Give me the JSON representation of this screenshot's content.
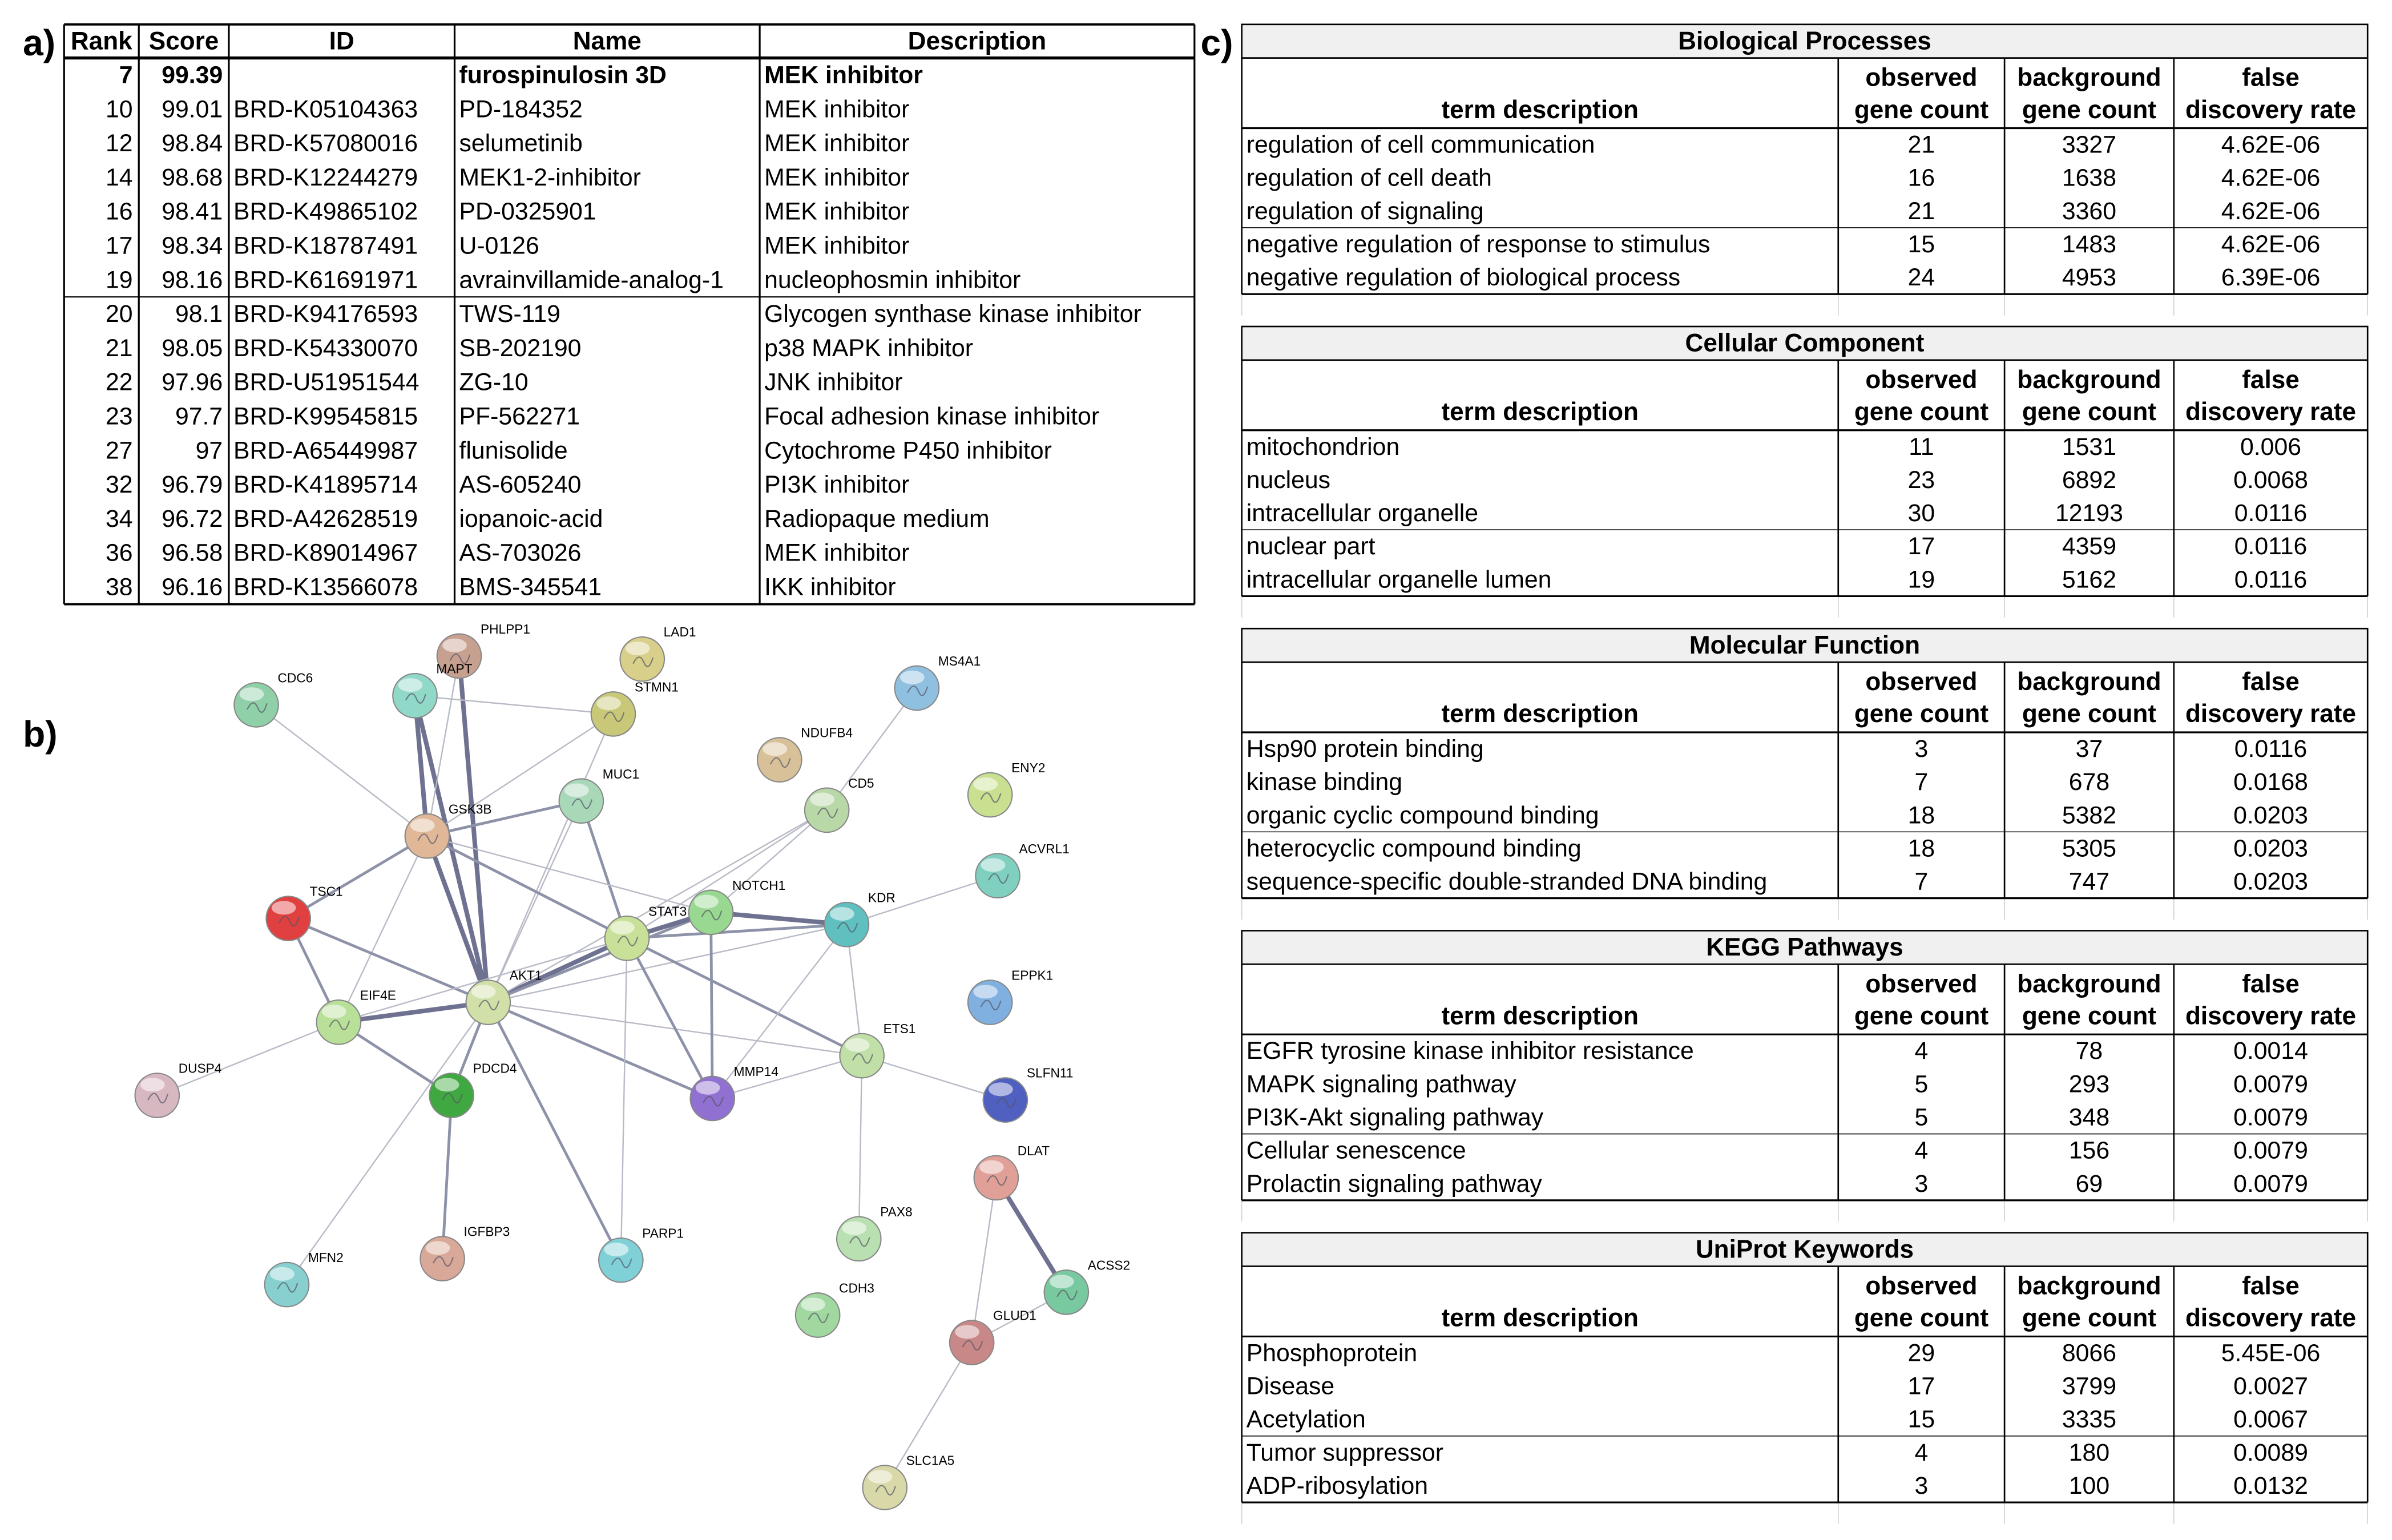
{
  "panel_labels": [
    "a)",
    "b)",
    "c)"
  ],
  "table_a": {
    "headers": [
      "Rank",
      "Score",
      "ID",
      "Name",
      "Description"
    ],
    "rows": [
      [
        7,
        99.39,
        null,
        "furospinulosin 3D",
        "MEK inhibitor"
      ],
      [
        10,
        99.01,
        "BRD-K05104363",
        "PD-184352",
        "MEK inhibitor"
      ],
      [
        12,
        98.84,
        "BRD-K57080016",
        "selumetinib",
        "MEK inhibitor"
      ],
      [
        14,
        98.68,
        "BRD-K12244279",
        "MEK1-2-inhibitor",
        "MEK inhibitor"
      ],
      [
        16,
        98.41,
        "BRD-K49865102",
        "PD-0325901",
        "MEK inhibitor"
      ],
      [
        17,
        98.34,
        "BRD-K18787491",
        "U-0126",
        "MEK inhibitor"
      ],
      [
        19,
        98.16,
        "BRD-K61691971",
        "avrainvillamide-analog-1",
        "nucleophosmin inhibitor"
      ],
      [
        20,
        98.1,
        "BRD-K94176593",
        "TWS-119",
        "Glycogen synthase kinase inhibitor"
      ],
      [
        21,
        98.05,
        "BRD-K54330070",
        "SB-202190",
        "p38 MAPK inhibitor"
      ],
      [
        22,
        97.96,
        "BRD-U51951544",
        "ZG-10",
        "JNK inhibitor"
      ],
      [
        23,
        97.7,
        "BRD-K99545815",
        "PF-562271",
        "Focal adhesion kinase inhibitor"
      ],
      [
        27,
        97,
        "BRD-A65449987",
        "flunisolide",
        "Cytochrome P450 inhibitor"
      ],
      [
        32,
        96.79,
        "BRD-K41895714",
        "AS-605240",
        "PI3K inhibitor"
      ],
      [
        34,
        96.72,
        "BRD-A42628519",
        "iopanoic-acid",
        "Radiopaque medium"
      ],
      [
        36,
        96.58,
        "BRD-K89014967",
        "AS-703026",
        "MEK inhibitor"
      ],
      [
        38,
        96.16,
        "BRD-K13566078",
        "BMS-345541",
        "IKK inhibitor"
      ]
    ]
  },
  "network": {
    "nodes": [
      "PHLPP1",
      "LAD1",
      "CDC6",
      "MAPT",
      "STMN1",
      "MS4A1",
      "NDUFB4",
      "ENY2",
      "MUC1",
      "CD5",
      "GSK3B",
      "ACVRL1",
      "TSC1",
      "NOTCH1",
      "STAT3",
      "KDR",
      "AKT1",
      "EIF4E",
      "EPPK1",
      "ETS1",
      "DUSP4",
      "PDCD4",
      "MMP14",
      "SLFN11",
      "DLAT",
      "PAX8",
      "IGFBP3",
      "PARP1",
      "ACSS2",
      "MFN2",
      "CDH3",
      "GLUD1",
      "SLC1A5"
    ]
  },
  "enrichment": [
    {
      "title": "Biological Processes",
      "headers": [
        "term description",
        [
          "observed",
          "gene count"
        ],
        [
          "background",
          "gene count"
        ],
        [
          "false",
          "discovery rate"
        ]
      ],
      "rows": [
        [
          "regulation of cell communication",
          21,
          3327,
          "4.62E-06"
        ],
        [
          "regulation of cell death",
          16,
          1638,
          "4.62E-06"
        ],
        [
          "regulation of signaling",
          21,
          3360,
          "4.62E-06"
        ],
        [
          "negative regulation of response to stimulus",
          15,
          1483,
          "4.62E-06"
        ],
        [
          "negative regulation of biological process",
          24,
          4953,
          "6.39E-06"
        ]
      ]
    },
    {
      "title": "Cellular Component",
      "headers": [
        "term description",
        [
          "observed",
          "gene count"
        ],
        [
          "background",
          "gene count"
        ],
        [
          "false",
          "discovery rate"
        ]
      ],
      "rows": [
        [
          "mitochondrion",
          11,
          1531,
          0.006
        ],
        [
          "nucleus",
          23,
          6892,
          0.0068
        ],
        [
          "intracellular organelle",
          30,
          12193,
          0.0116
        ],
        [
          "nuclear part",
          17,
          4359,
          0.0116
        ],
        [
          "intracellular organelle lumen",
          19,
          5162,
          0.0116
        ]
      ]
    },
    {
      "title": "Molecular Function",
      "headers": [
        "term description",
        [
          "observed",
          "gene count"
        ],
        [
          "background",
          "gene count"
        ],
        [
          "false",
          "discovery rate"
        ]
      ],
      "rows": [
        [
          "Hsp90 protein binding",
          3,
          37,
          0.0116
        ],
        [
          "kinase binding",
          7,
          678,
          0.0168
        ],
        [
          "organic cyclic compound binding",
          18,
          5382,
          0.0203
        ],
        [
          "heterocyclic compound binding",
          18,
          5305,
          0.0203
        ],
        [
          "sequence-specific double-stranded DNA binding",
          7,
          747,
          0.0203
        ]
      ]
    },
    {
      "title": "KEGG Pathways",
      "headers": [
        "term description",
        [
          "observed",
          "gene count"
        ],
        [
          "background",
          "gene count"
        ],
        [
          "false",
          "discovery rate"
        ]
      ],
      "rows": [
        [
          "EGFR tyrosine kinase inhibitor resistance",
          4,
          78,
          0.0014
        ],
        [
          "MAPK signaling pathway",
          5,
          293,
          0.0079
        ],
        [
          "PI3K-Akt signaling pathway",
          5,
          348,
          0.0079
        ],
        [
          "Cellular senescence",
          4,
          156,
          0.0079
        ],
        [
          "Prolactin signaling pathway",
          3,
          69,
          0.0079
        ]
      ]
    },
    {
      "title": "UniProt Keywords",
      "headers": [
        "term description",
        [
          "observed",
          "gene count"
        ],
        [
          "background",
          "gene count"
        ],
        [
          "false",
          "discovery rate"
        ]
      ],
      "rows": [
        [
          "Phosphoprotein",
          29,
          8066,
          "5.45E-06"
        ],
        [
          "Disease",
          17,
          3799,
          0.0027
        ],
        [
          "Acetylation",
          15,
          3335,
          0.0067
        ],
        [
          "Tumor suppressor",
          4,
          180,
          0.0089
        ],
        [
          "ADP-ribosylation",
          3,
          100,
          0.0132
        ]
      ]
    }
  ]
}
